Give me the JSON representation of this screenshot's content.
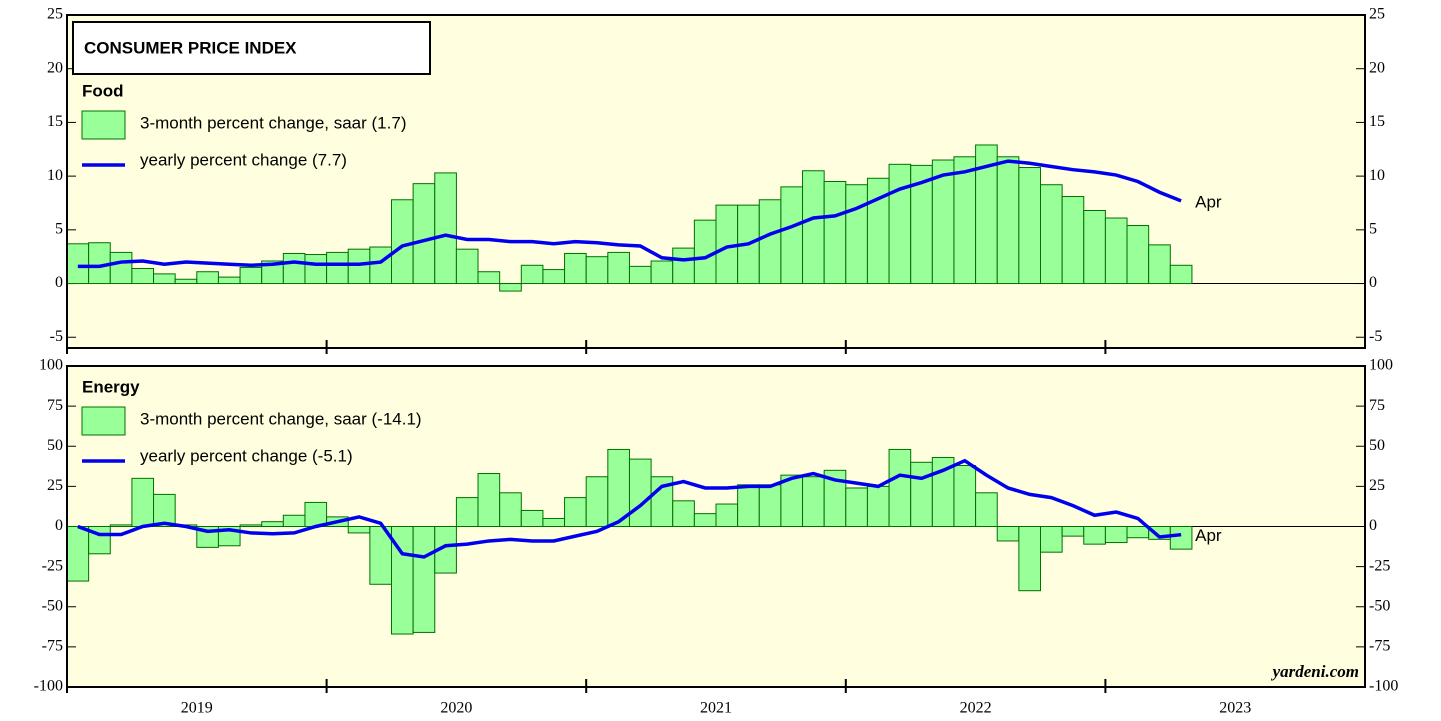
{
  "chart_data": [
    {
      "type": "bar_line",
      "title": "CONSUMER PRICE INDEX",
      "subtitle": "Food",
      "xlim": [
        2019,
        2024
      ],
      "ylim": [
        -6,
        25
      ],
      "yticks": [
        -5,
        0,
        5,
        10,
        15,
        20,
        25
      ],
      "series": [
        {
          "name": "3-month percent change, saar (1.7)",
          "type": "bar",
          "color": "#99ff99",
          "values": [
            3.7,
            3.8,
            2.9,
            1.4,
            0.9,
            0.4,
            1.1,
            0.6,
            1.5,
            2.1,
            2.8,
            2.7,
            2.9,
            3.2,
            3.4,
            7.8,
            9.3,
            10.3,
            3.2,
            1.1,
            -0.7,
            1.7,
            1.3,
            2.8,
            2.5,
            2.9,
            1.6,
            2.1,
            3.3,
            5.9,
            7.3,
            7.3,
            7.8,
            9.0,
            10.5,
            9.5,
            9.2,
            9.8,
            11.1,
            11.0,
            11.5,
            11.8,
            12.9,
            11.8,
            10.8,
            9.2,
            8.1,
            6.8,
            6.1,
            5.4,
            3.6,
            1.7
          ]
        },
        {
          "name": "yearly percent change (7.7)",
          "type": "line",
          "color": "#0000ee",
          "values": [
            1.6,
            1.6,
            2.0,
            2.1,
            1.8,
            2.0,
            1.9,
            1.8,
            1.7,
            1.8,
            2.0,
            1.8,
            1.8,
            1.8,
            2.0,
            3.5,
            4.0,
            4.5,
            4.1,
            4.1,
            3.9,
            3.9,
            3.7,
            3.9,
            3.8,
            3.6,
            3.5,
            2.4,
            2.2,
            2.4,
            3.4,
            3.7,
            4.6,
            5.3,
            6.1,
            6.3,
            7.0,
            7.9,
            8.8,
            9.4,
            10.1,
            10.4,
            10.9,
            11.4,
            11.2,
            10.9,
            10.6,
            10.4,
            10.1,
            9.5,
            8.5,
            7.7
          ]
        }
      ],
      "annotation": "Apr"
    },
    {
      "type": "bar_line",
      "subtitle": "Energy",
      "xlim": [
        2019,
        2024
      ],
      "ylim": [
        -100,
        100
      ],
      "yticks": [
        -100,
        -75,
        -50,
        -25,
        0,
        25,
        50,
        75,
        100
      ],
      "xticks": [
        2019,
        2020,
        2021,
        2022,
        2023
      ],
      "series": [
        {
          "name": "3-month percent change, saar (-14.1)",
          "type": "bar",
          "color": "#99ff99",
          "values": [
            -34,
            -17,
            1,
            30,
            20,
            1,
            -13,
            -12,
            1,
            3,
            7,
            15,
            6,
            -4,
            -36,
            -67,
            -66,
            -29,
            18,
            33,
            21,
            10,
            5,
            18,
            31,
            48,
            42,
            31,
            16,
            8,
            14,
            26,
            26,
            32,
            31,
            35,
            24,
            25,
            48,
            40,
            43,
            38,
            21,
            -9,
            -40,
            -16,
            -6,
            -11,
            -10,
            -7,
            -8,
            -14.1
          ]
        },
        {
          "name": "yearly percent change (-5.1)",
          "type": "line",
          "color": "#0000ee",
          "values": [
            0,
            -5,
            -5,
            0,
            2,
            0,
            -3,
            -2,
            -4,
            -4.5,
            -4,
            0,
            3,
            6,
            2,
            -17,
            -19,
            -12,
            -11,
            -9,
            -8,
            -9,
            -9,
            -6,
            -3,
            3,
            13,
            25,
            28,
            24,
            24,
            25,
            25,
            30,
            33,
            29,
            27,
            25,
            32,
            30,
            35,
            41,
            32,
            24,
            20,
            18,
            13,
            7,
            9,
            5,
            -6.5,
            -5.1
          ]
        }
      ],
      "annotation": "Apr",
      "credit": "yardeni.com"
    }
  ]
}
